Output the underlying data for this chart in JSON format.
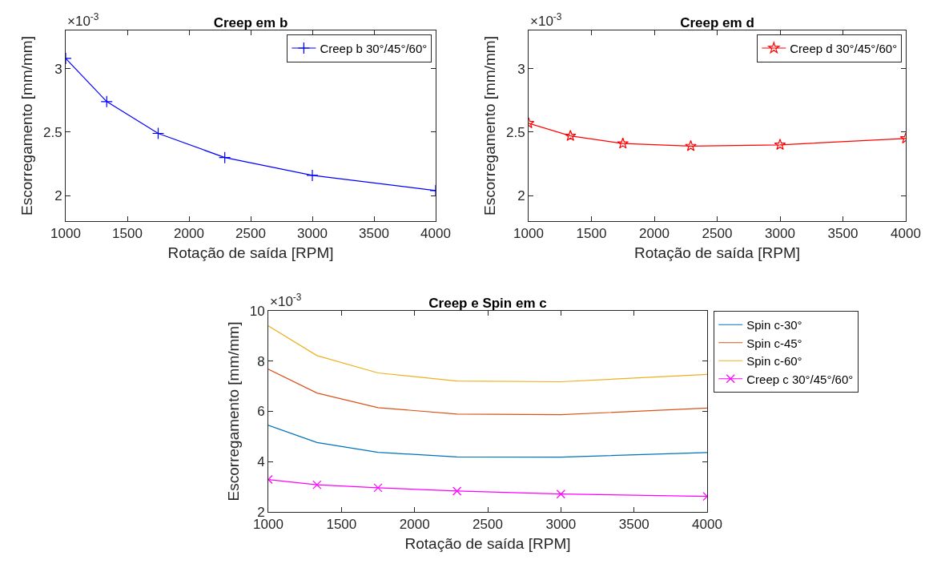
{
  "chart_data": [
    {
      "type": "line",
      "title": "Creep em b",
      "xlabel": "Rotação de saída [RPM]",
      "ylabel": "Escorregamento [mm/mm]",
      "annotations": [
        "×10$^{-3}$"
      ],
      "x": [
        1000,
        1333,
        1750,
        2290,
        3000,
        4000
      ],
      "xlim": [
        1000,
        4000
      ],
      "xticks": [
        1000,
        1500,
        2000,
        2500,
        3000,
        3500,
        4000
      ],
      "ylim": [
        1.8,
        3.3
      ],
      "yticks": [
        2,
        2.5,
        3
      ],
      "grid": false,
      "legend": "top right",
      "marker": "plus",
      "line_style": "solid",
      "series": [
        {
          "name": "Creep b 30°/45°/60°",
          "color": "#0000ff",
          "values": [
            3.08,
            2.74,
            2.49,
            2.3,
            2.16,
            2.04
          ]
        }
      ]
    },
    {
      "type": "line",
      "title": "Creep em d",
      "xlabel": "Rotação de saída [RPM]",
      "ylabel": "Escorregamento [mm/mm]",
      "annotations": [
        "×10$^{-3}$"
      ],
      "x": [
        1000,
        1333,
        1750,
        2290,
        3000,
        4000
      ],
      "xlim": [
        1000,
        4000
      ],
      "xticks": [
        1000,
        1500,
        2000,
        2500,
        3000,
        3500,
        4000
      ],
      "ylim": [
        1.8,
        3.3
      ],
      "yticks": [
        2,
        2.5,
        3
      ],
      "grid": false,
      "legend": "top right",
      "marker": "star",
      "line_style": "solid",
      "series": [
        {
          "name": "Creep d 30°/45°/60°",
          "color": "#ff0000",
          "values": [
            2.57,
            2.47,
            2.41,
            2.39,
            2.4,
            2.45
          ]
        }
      ]
    },
    {
      "type": "line",
      "title": "Creep e Spin em c",
      "xlabel": "Rotação de saída [RPM]",
      "ylabel": "Escorregamento [mm/mm]",
      "annotations": [
        "×10$^{-3}$"
      ],
      "x": [
        1000,
        1333,
        1750,
        2290,
        3000,
        4000
      ],
      "xlim": [
        1000,
        4000
      ],
      "xticks": [
        1000,
        1500,
        2000,
        2500,
        3000,
        3500,
        4000
      ],
      "ylim": [
        2,
        10
      ],
      "yticks": [
        2,
        4,
        6,
        8,
        10
      ],
      "grid": false,
      "legend": "right",
      "line_style": "solid",
      "series": [
        {
          "name": "Spin c-30°",
          "color": "#0072bd",
          "marker": "none",
          "values": [
            5.45,
            4.76,
            4.37,
            4.19,
            4.18,
            4.36
          ]
        },
        {
          "name": "Spin c-45°",
          "color": "#d95319",
          "marker": "none",
          "values": [
            7.68,
            6.73,
            6.15,
            5.89,
            5.87,
            6.13
          ]
        },
        {
          "name": "Spin c-60°",
          "color": "#edb120",
          "marker": "none",
          "values": [
            9.4,
            8.22,
            7.53,
            7.21,
            7.18,
            7.47
          ]
        },
        {
          "name": "Creep c 30°/45°/60°",
          "color": "#ff00ff",
          "marker": "cross",
          "values": [
            3.29,
            3.08,
            2.96,
            2.83,
            2.71,
            2.62
          ]
        }
      ]
    }
  ]
}
